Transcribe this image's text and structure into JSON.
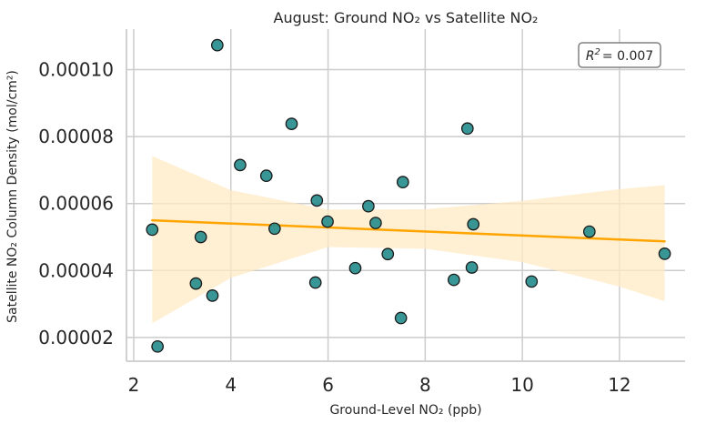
{
  "chart_data": {
    "type": "scatter",
    "title": "August: Ground NO₂ vs Satellite NO₂",
    "xlabel": "Ground-Level NO₂ (ppb)",
    "ylabel": "Satellite NO₂ Column Density (mol/cm²)",
    "xlim": [
      1.85,
      13.35
    ],
    "ylim": [
      1.29e-05,
      0.0001121
    ],
    "xticks": [
      2,
      4,
      6,
      8,
      10,
      12
    ],
    "xtick_labels": [
      "2",
      "4",
      "6",
      "8",
      "10",
      "12"
    ],
    "yticks": [
      2e-05,
      4e-05,
      6e-05,
      8e-05,
      0.0001
    ],
    "ytick_labels": [
      "0.00002",
      "0.00004",
      "0.00006",
      "0.00008",
      "0.00010"
    ],
    "grid": true,
    "annotation": {
      "prefix": "R",
      "sup": "2",
      "suffix": "= 0.007"
    },
    "colors": {
      "points": "#238b8b",
      "point_edge": "#1a1a1a",
      "regression_line": "#ffa500",
      "confidence_band": "#ffe9c4",
      "grid": "#cccccc",
      "axes": "#cccccc"
    },
    "points": [
      {
        "x": 2.38,
        "y": 5.22e-05
      },
      {
        "x": 2.49,
        "y": 1.73e-05
      },
      {
        "x": 3.28,
        "y": 3.61e-05
      },
      {
        "x": 3.38,
        "y": 5e-05
      },
      {
        "x": 3.62,
        "y": 3.25e-05
      },
      {
        "x": 3.72,
        "y": 0.0001073
      },
      {
        "x": 4.19,
        "y": 7.15e-05
      },
      {
        "x": 4.73,
        "y": 6.83e-05
      },
      {
        "x": 4.9,
        "y": 5.25e-05
      },
      {
        "x": 5.25,
        "y": 8.38e-05
      },
      {
        "x": 5.74,
        "y": 3.64e-05
      },
      {
        "x": 5.77,
        "y": 6.09e-05
      },
      {
        "x": 5.99,
        "y": 5.46e-05
      },
      {
        "x": 6.56,
        "y": 4.07e-05
      },
      {
        "x": 6.83,
        "y": 5.92e-05
      },
      {
        "x": 6.98,
        "y": 5.42e-05
      },
      {
        "x": 7.23,
        "y": 4.49e-05
      },
      {
        "x": 7.5,
        "y": 2.58e-05
      },
      {
        "x": 7.54,
        "y": 6.64e-05
      },
      {
        "x": 8.59,
        "y": 3.72e-05
      },
      {
        "x": 8.87,
        "y": 8.24e-05
      },
      {
        "x": 8.96,
        "y": 4.09e-05
      },
      {
        "x": 8.99,
        "y": 5.38e-05
      },
      {
        "x": 10.19,
        "y": 3.67e-05
      },
      {
        "x": 11.38,
        "y": 5.16e-05
      },
      {
        "x": 12.93,
        "y": 4.5e-05
      }
    ],
    "regression_line": {
      "x": [
        2.38,
        12.93
      ],
      "y": [
        5.5e-05,
        4.87e-05
      ]
    },
    "confidence_band": {
      "x": [
        2.38,
        4.0,
        6.0,
        8.0,
        10.0,
        12.0,
        12.93
      ],
      "upper": [
        7.42e-05,
        6.4e-05,
        5.82e-05,
        5.83e-05,
        6.08e-05,
        6.43e-05,
        6.55e-05
      ],
      "lower": [
        2.42e-05,
        3.78e-05,
        4.7e-05,
        4.65e-05,
        4.25e-05,
        3.52e-05,
        3.08e-05
      ]
    }
  }
}
